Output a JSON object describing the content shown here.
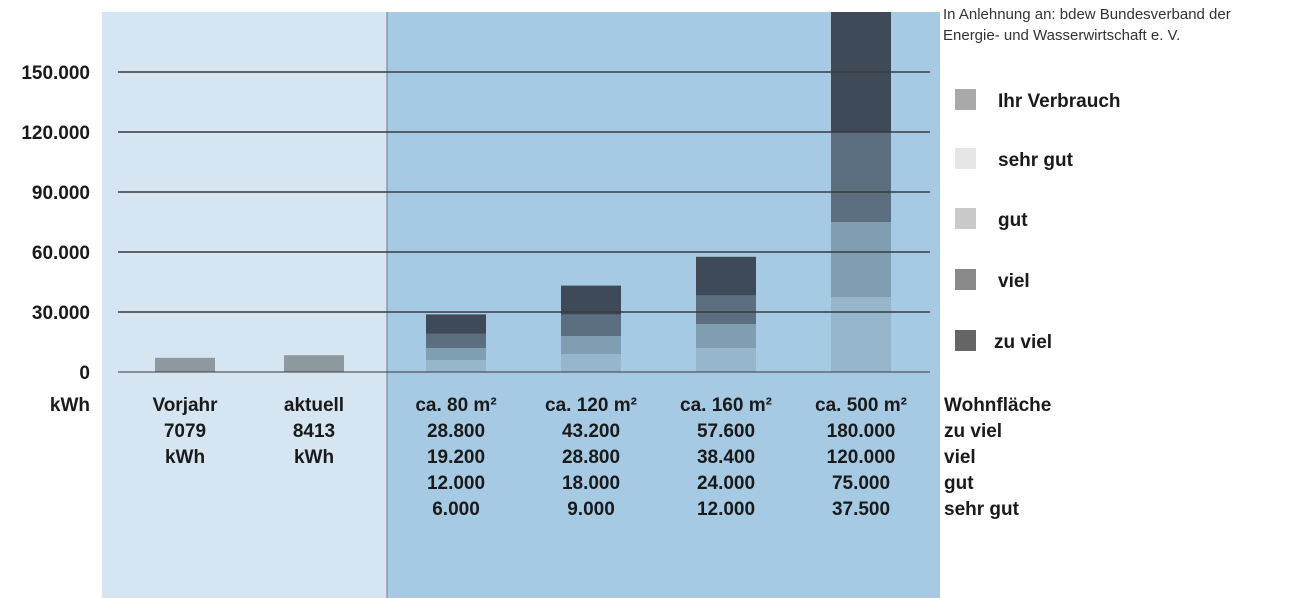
{
  "source_note_lines": [
    "In Anlehnung an: bdew Bundesverband der",
    "Energie- und Wasserwirtschaft e. V."
  ],
  "colors": {
    "left_panel_bg": "#d5e5f1",
    "right_panel_bg": "#a6cae4",
    "separator": "#6f7f8a",
    "gridline": "#3a3a3a",
    "consumption_bar": "#8e989f",
    "sehr_gut": "#96b6cb",
    "gut": "#7f9eb2",
    "viel": "#5b6f80",
    "zu_viel": "#3e4a58",
    "legend_ihr_verbrauch": "#a9a9a9",
    "legend_sehr_gut": "#e6e6e6",
    "legend_gut": "#c9c9c9",
    "legend_viel": "#8a8a8a",
    "legend_zu_viel": "#656565"
  },
  "legend": [
    {
      "key": "ihr_verbrauch",
      "label": "Ihr Verbrauch"
    },
    {
      "key": "sehr_gut",
      "label": "sehr gut"
    },
    {
      "key": "gut",
      "label": "gut"
    },
    {
      "key": "viel",
      "label": "viel"
    },
    {
      "key": "zu_viel",
      "label": "zu viel"
    }
  ],
  "chart_data": {
    "type": "bar",
    "ylabel": "kWh",
    "ylim": [
      0,
      180000
    ],
    "yticks": [
      0,
      30000,
      60000,
      90000,
      120000,
      150000
    ],
    "ytick_labels": [
      "0",
      "30.000",
      "60.000",
      "90.000",
      "120.000",
      "150.000"
    ],
    "grid": true,
    "consumption": [
      {
        "category": "Vorjahr",
        "value": 7079,
        "label_lines": [
          "Vorjahr",
          "7079",
          "kWh"
        ]
      },
      {
        "category": "aktuell",
        "value": 8413,
        "label_lines": [
          "aktuell",
          "8413",
          "kWh"
        ]
      }
    ],
    "reference_row_labels": [
      "Wohnfläche",
      "zu viel",
      "viel",
      "gut",
      "sehr gut"
    ],
    "reference": [
      {
        "category": "ca. 80 m²",
        "zu_viel": 28800,
        "viel": 19200,
        "gut": 12000,
        "sehr_gut": 6000,
        "label_lines": [
          "ca. 80 m²",
          "28.800",
          "19.200",
          "12.000",
          "6.000"
        ]
      },
      {
        "category": "ca. 120 m²",
        "zu_viel": 43200,
        "viel": 28800,
        "gut": 18000,
        "sehr_gut": 9000,
        "label_lines": [
          "ca. 120 m²",
          "43.200",
          "28.800",
          "18.000",
          "9.000"
        ]
      },
      {
        "category": "ca. 160 m²",
        "zu_viel": 57600,
        "viel": 38400,
        "gut": 24000,
        "sehr_gut": 12000,
        "label_lines": [
          "ca. 160 m²",
          "57.600",
          "38.400",
          "24.000",
          "12.000"
        ]
      },
      {
        "category": "ca. 500 m²",
        "zu_viel": 180000,
        "viel": 120000,
        "gut": 75000,
        "sehr_gut": 37500,
        "label_lines": [
          "ca. 500 m²",
          "180.000",
          "120.000",
          "75.000",
          "37.500"
        ]
      }
    ]
  }
}
